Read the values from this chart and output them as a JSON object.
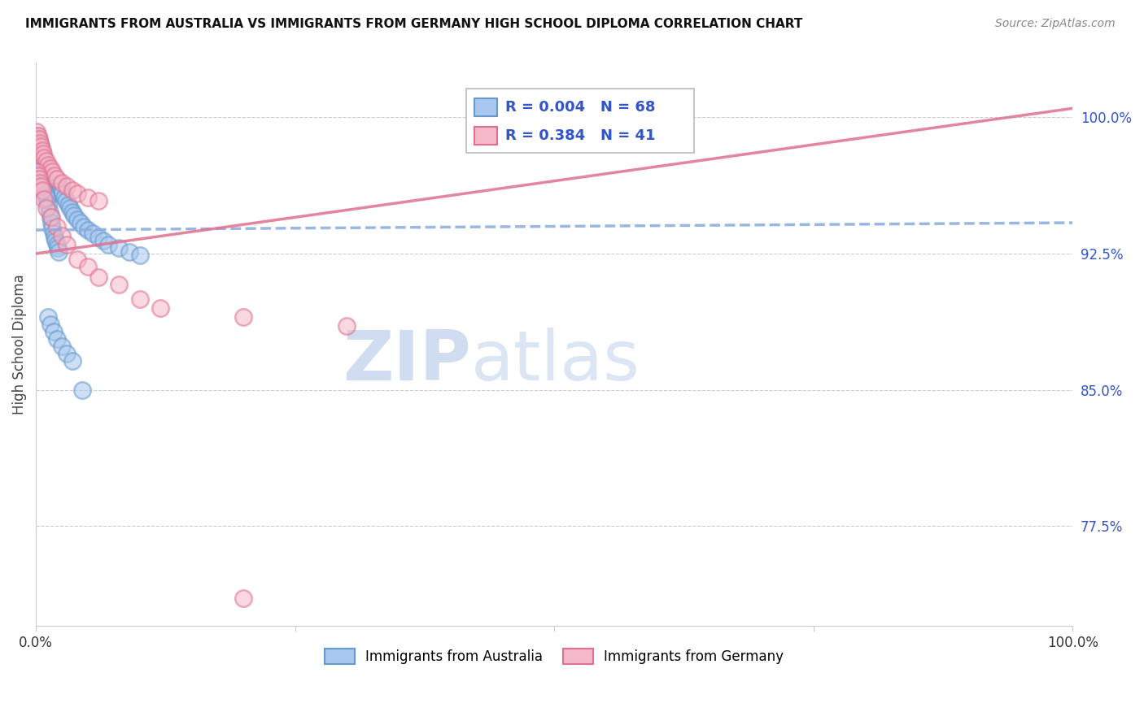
{
  "title": "IMMIGRANTS FROM AUSTRALIA VS IMMIGRANTS FROM GERMANY HIGH SCHOOL DIPLOMA CORRELATION CHART",
  "source": "Source: ZipAtlas.com",
  "ylabel": "High School Diploma",
  "legend_label_1": "Immigrants from Australia",
  "legend_label_2": "Immigrants from Germany",
  "R1": 0.004,
  "N1": 68,
  "R2": 0.384,
  "N2": 41,
  "color_australia": "#A8C8F0",
  "color_australia_edge": "#6699CC",
  "color_germany": "#F5B8C8",
  "color_germany_edge": "#E07090",
  "color_australia_line": "#88AADD",
  "color_germany_line": "#E07090",
  "color_r_text": "#3355CC",
  "ytick_labels": [
    "100.0%",
    "92.5%",
    "85.0%",
    "77.5%"
  ],
  "ytick_values": [
    1.0,
    0.925,
    0.85,
    0.775
  ],
  "xlim": [
    0.0,
    1.0
  ],
  "ylim": [
    0.72,
    1.03
  ],
  "australia_x": [
    0.001,
    0.001,
    0.002,
    0.002,
    0.003,
    0.003,
    0.004,
    0.004,
    0.005,
    0.005,
    0.006,
    0.006,
    0.007,
    0.007,
    0.008,
    0.009,
    0.01,
    0.01,
    0.011,
    0.012,
    0.013,
    0.014,
    0.015,
    0.016,
    0.017,
    0.018,
    0.019,
    0.02,
    0.021,
    0.022,
    0.023,
    0.024,
    0.025,
    0.027,
    0.029,
    0.031,
    0.033,
    0.035,
    0.037,
    0.04,
    0.043,
    0.046,
    0.05,
    0.055,
    0.06,
    0.065,
    0.07,
    0.08,
    0.09,
    0.1,
    0.001,
    0.002,
    0.003,
    0.004,
    0.005,
    0.006,
    0.007,
    0.008,
    0.009,
    0.01,
    0.012,
    0.014,
    0.017,
    0.02,
    0.025,
    0.03,
    0.035,
    0.045
  ],
  "australia_y": [
    0.99,
    0.985,
    0.988,
    0.983,
    0.987,
    0.981,
    0.985,
    0.979,
    0.984,
    0.978,
    0.97,
    0.965,
    0.968,
    0.963,
    0.966,
    0.96,
    0.961,
    0.958,
    0.955,
    0.952,
    0.948,
    0.945,
    0.942,
    0.939,
    0.936,
    0.934,
    0.932,
    0.93,
    0.928,
    0.926,
    0.963,
    0.96,
    0.958,
    0.956,
    0.954,
    0.952,
    0.95,
    0.948,
    0.946,
    0.944,
    0.942,
    0.94,
    0.938,
    0.936,
    0.934,
    0.932,
    0.93,
    0.928,
    0.926,
    0.924,
    0.975,
    0.972,
    0.97,
    0.968,
    0.966,
    0.964,
    0.962,
    0.96,
    0.958,
    0.956,
    0.89,
    0.886,
    0.882,
    0.878,
    0.874,
    0.87,
    0.866,
    0.85
  ],
  "germany_x": [
    0.001,
    0.002,
    0.003,
    0.004,
    0.005,
    0.006,
    0.007,
    0.008,
    0.01,
    0.012,
    0.014,
    0.016,
    0.018,
    0.02,
    0.025,
    0.03,
    0.035,
    0.04,
    0.05,
    0.06,
    0.001,
    0.002,
    0.003,
    0.004,
    0.005,
    0.006,
    0.008,
    0.01,
    0.015,
    0.02,
    0.025,
    0.03,
    0.04,
    0.05,
    0.06,
    0.08,
    0.1,
    0.12,
    0.2,
    0.3,
    0.2
  ],
  "germany_y": [
    0.992,
    0.99,
    0.988,
    0.986,
    0.984,
    0.982,
    0.98,
    0.978,
    0.976,
    0.974,
    0.972,
    0.97,
    0.968,
    0.966,
    0.964,
    0.962,
    0.96,
    0.958,
    0.956,
    0.954,
    0.97,
    0.968,
    0.966,
    0.964,
    0.962,
    0.96,
    0.955,
    0.95,
    0.945,
    0.94,
    0.935,
    0.93,
    0.922,
    0.918,
    0.912,
    0.908,
    0.9,
    0.895,
    0.89,
    0.885,
    0.735
  ],
  "aus_line_x0": 0.0,
  "aus_line_x1": 1.0,
  "aus_line_y0": 0.938,
  "aus_line_y1": 0.942,
  "ger_line_x0": 0.0,
  "ger_line_x1": 1.0,
  "ger_line_y0": 0.925,
  "ger_line_y1": 1.005
}
